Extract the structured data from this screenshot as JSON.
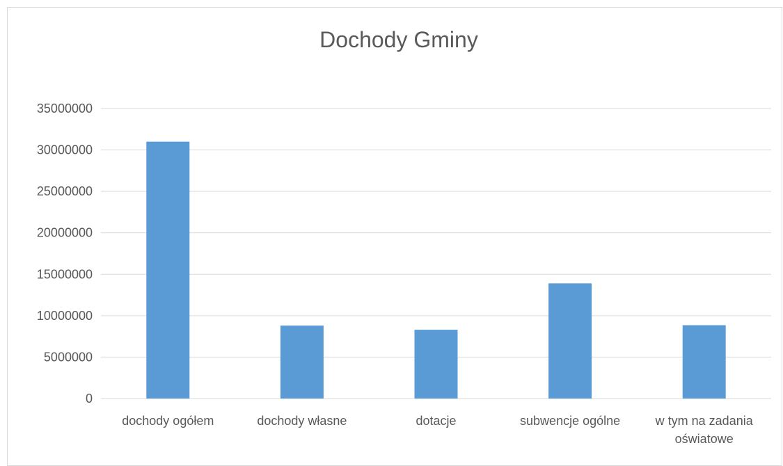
{
  "chart_data": {
    "type": "bar",
    "title": "Dochody Gminy",
    "xlabel": "",
    "ylabel": "",
    "categories": [
      [
        "dochody ogółem"
      ],
      [
        "dochody własne"
      ],
      [
        "dotacje"
      ],
      [
        "subwencje ogólne"
      ],
      [
        "w tym na zadania",
        "oświatowe"
      ]
    ],
    "values": [
      31000000,
      8800000,
      8300000,
      13900000,
      8850000
    ],
    "ylim": [
      0,
      35000000
    ],
    "yticks": [
      0,
      5000000,
      10000000,
      15000000,
      20000000,
      25000000,
      30000000,
      35000000
    ],
    "ytick_labels": [
      "0",
      "5000000",
      "10000000",
      "15000000",
      "20000000",
      "25000000",
      "30000000",
      "35000000"
    ],
    "grid": true,
    "legend": "none",
    "bar_color": "#5b9bd5"
  }
}
